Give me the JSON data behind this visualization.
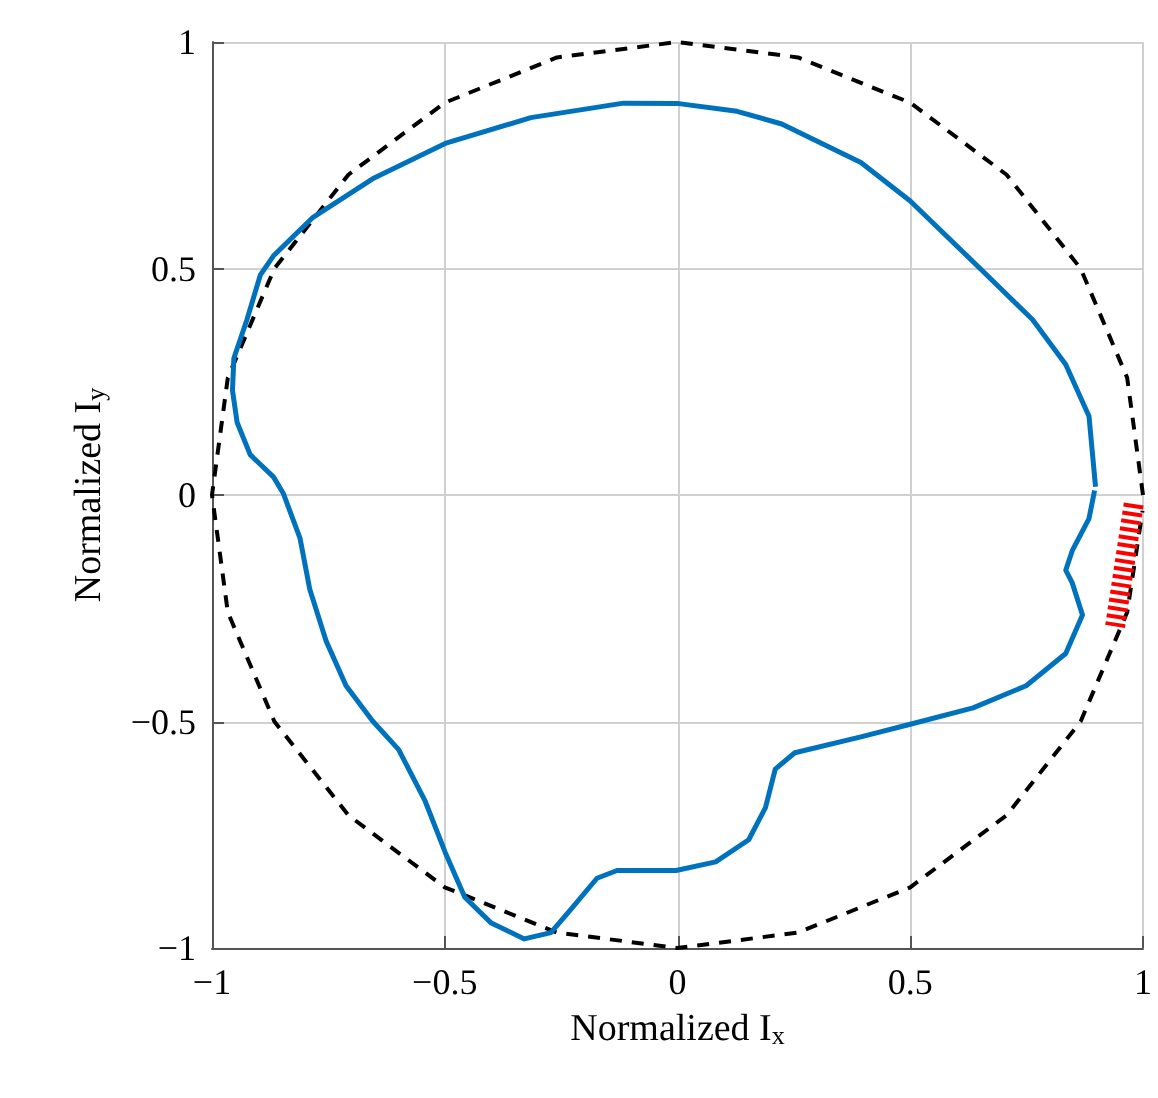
{
  "chart_data": {
    "type": "line",
    "xlabel": "Normalized I$_{x}$",
    "ylabel": "Normalized I$_{y}$",
    "xlim": [
      -1,
      1
    ],
    "ylim": [
      -1,
      1
    ],
    "xticks": [
      {
        "value": -1,
        "label": "−1"
      },
      {
        "value": -0.5,
        "label": "−0.5"
      },
      0,
      0.5,
      1
    ],
    "yticks": [
      {
        "value": -1,
        "label": "−1"
      },
      {
        "value": -0.5,
        "label": "−0.5"
      },
      0,
      0.5,
      1
    ],
    "grid": true,
    "legend": false,
    "marker": "none",
    "series": [
      {
        "color": "#000000",
        "line_style": "dashed",
        "x": [
          1,
          0.966,
          0.866,
          0.707,
          0.5,
          0.259,
          0,
          -0.259,
          -0.5,
          -0.707,
          -0.866,
          -0.966,
          -1,
          -0.966,
          -0.866,
          -0.707,
          -0.5,
          -0.259,
          0,
          0.259,
          0.5,
          0.707,
          0.866,
          0.966,
          0.999
        ],
        "values": [
          0,
          0.259,
          0.5,
          0.707,
          0.866,
          0.966,
          1,
          0.966,
          0.866,
          0.707,
          0.5,
          0.259,
          0,
          -0.259,
          -0.5,
          -0.707,
          -0.866,
          -0.966,
          -1,
          -0.966,
          -0.866,
          -0.707,
          -0.5,
          -0.259,
          -0.035
        ]
      },
      {
        "color": "#0072bd",
        "line_style": "solid",
        "x": [
          0.898,
          0.884,
          0.834,
          0.763,
          0.65,
          0.5,
          0.394,
          0.224,
          0.128,
          0.003,
          -0.116,
          -0.315,
          -0.499,
          -0.655,
          -0.783,
          -0.868,
          -0.896,
          -0.925,
          -0.953,
          -0.956,
          -0.946,
          -0.918,
          -0.868,
          -0.847,
          -0.811,
          -0.79,
          -0.755,
          -0.712,
          -0.655,
          -0.599,
          -0.542,
          -0.499,
          -0.457,
          -0.4,
          -0.329,
          -0.272,
          -0.23,
          -0.173,
          -0.13,
          -0.003,
          0.082,
          0.153,
          0.189,
          0.21,
          0.252,
          0.394,
          0.5,
          0.635,
          0.749,
          0.834,
          0.87,
          0.848,
          0.834,
          0.848,
          0.884,
          0.896
        ],
        "values": [
          0.018,
          0.174,
          0.288,
          0.387,
          0.5,
          0.649,
          0.734,
          0.819,
          0.847,
          0.864,
          0.865,
          0.833,
          0.776,
          0.698,
          0.613,
          0.528,
          0.486,
          0.387,
          0.302,
          0.231,
          0.16,
          0.089,
          0.04,
          0.004,
          -0.095,
          -0.208,
          -0.322,
          -0.421,
          -0.499,
          -0.562,
          -0.676,
          -0.789,
          -0.888,
          -0.945,
          -0.98,
          -0.966,
          -0.916,
          -0.846,
          -0.829,
          -0.829,
          -0.81,
          -0.761,
          -0.69,
          -0.605,
          -0.569,
          -0.534,
          -0.506,
          -0.47,
          -0.421,
          -0.35,
          -0.265,
          -0.194,
          -0.166,
          -0.123,
          -0.052,
          0.01
        ]
      },
      {
        "color": "#ff0000",
        "line_style": "dotted",
        "x": [
          0.98,
          0.94
        ],
        "values": [
          -0.02,
          -0.29
        ]
      }
    ]
  }
}
